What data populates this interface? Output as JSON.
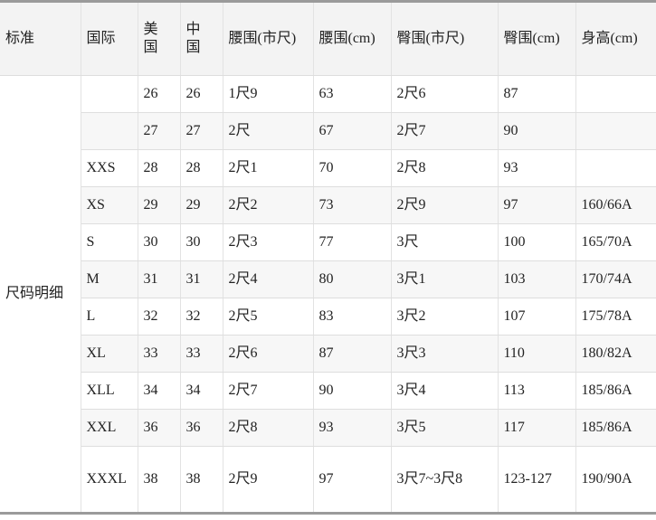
{
  "table": {
    "headers": {
      "standard": "标准",
      "intl": "国际",
      "us": [
        "美",
        "国"
      ],
      "cn": [
        "中",
        "国"
      ],
      "waist_shichi": "腰围(市尺)",
      "waist_cm": "腰围(cm)",
      "hip_shichi": "臀围(市尺)",
      "hip_cm": "臀围(cm)",
      "height_cm": "身高(cm)"
    },
    "category": "尺码明细",
    "rows": [
      {
        "intl": "",
        "us": "26",
        "cn": "26",
        "waist_shichi": "1尺9",
        "waist_cm": "63",
        "hip_shichi": "2尺6",
        "hip_cm": "87",
        "height": ""
      },
      {
        "intl": "",
        "us": "27",
        "cn": "27",
        "waist_shichi": "2尺",
        "waist_cm": "67",
        "hip_shichi": "2尺7",
        "hip_cm": "90",
        "height": ""
      },
      {
        "intl": "XXS",
        "us": "28",
        "cn": "28",
        "waist_shichi": "2尺1",
        "waist_cm": "70",
        "hip_shichi": "2尺8",
        "hip_cm": "93",
        "height": ""
      },
      {
        "intl": "XS",
        "us": "29",
        "cn": "29",
        "waist_shichi": "2尺2",
        "waist_cm": "73",
        "hip_shichi": "2尺9",
        "hip_cm": "97",
        "height": "160/66A"
      },
      {
        "intl": "S",
        "us": "30",
        "cn": "30",
        "waist_shichi": "2尺3",
        "waist_cm": "77",
        "hip_shichi": "3尺",
        "hip_cm": "100",
        "height": "165/70A"
      },
      {
        "intl": "M",
        "us": "31",
        "cn": "31",
        "waist_shichi": "2尺4",
        "waist_cm": "80",
        "hip_shichi": "3尺1",
        "hip_cm": "103",
        "height": "170/74A"
      },
      {
        "intl": "L",
        "us": "32",
        "cn": "32",
        "waist_shichi": "2尺5",
        "waist_cm": "83",
        "hip_shichi": "3尺2",
        "hip_cm": "107",
        "height": "175/78A"
      },
      {
        "intl": "XL",
        "us": "33",
        "cn": "33",
        "waist_shichi": "2尺6",
        "waist_cm": "87",
        "hip_shichi": "3尺3",
        "hip_cm": "110",
        "height": "180/82A"
      },
      {
        "intl": "XLL",
        "us": "34",
        "cn": "34",
        "waist_shichi": "2尺7",
        "waist_cm": "90",
        "hip_shichi": "3尺4",
        "hip_cm": "113",
        "height": "185/86A"
      },
      {
        "intl": "XXL",
        "us": "36",
        "cn": "36",
        "waist_shichi": "2尺8",
        "waist_cm": "93",
        "hip_shichi": "3尺5",
        "hip_cm": "117",
        "height": "185/86A"
      },
      {
        "intl": "XXXL",
        "us": "38",
        "cn": "38",
        "waist_shichi": "2尺9",
        "waist_cm": "97",
        "hip_shichi": "3尺7~3尺8",
        "hip_cm": "123-127",
        "height": "190/90A"
      }
    ]
  }
}
